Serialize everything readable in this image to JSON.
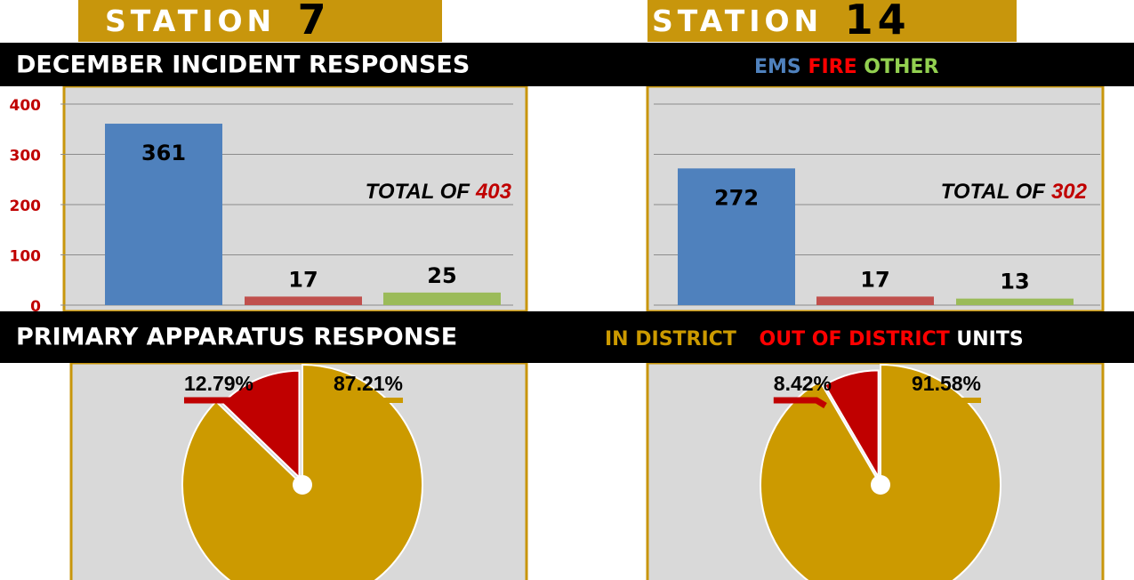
{
  "stations": [
    {
      "label": "STATION",
      "number": 7
    },
    {
      "label": "STATION",
      "number": 14
    }
  ],
  "banner1": {
    "title": "DECEMBER INCIDENT RESPONSES",
    "legend": [
      {
        "name": "EMS",
        "color": "#4f81bd"
      },
      {
        "name": "FIRE",
        "color": "#ff0000"
      },
      {
        "name": "OTHER",
        "color": "#92d050"
      }
    ]
  },
  "banner2": {
    "title": "PRIMARY APPARATUS RESPONSE",
    "legend": [
      {
        "name": "IN DISTRICT",
        "color": "#cc9a00"
      },
      {
        "name": "OUT OF DISTRICT",
        "color": "#ff0000"
      },
      {
        "name": "UNITS",
        "color": "#ffffff"
      }
    ]
  },
  "chart_data": [
    {
      "type": "bar",
      "values": [
        361,
        17,
        25
      ],
      "colors": [
        "#4f81bd",
        "#c0504d",
        "#9bbb59"
      ],
      "ylim": [
        0,
        400
      ],
      "yticks": [
        0,
        100,
        200,
        300,
        400
      ],
      "grid": true,
      "tick_labels": true,
      "annotation": "TOTAL OF",
      "total": 403,
      "total_color": "#c00000"
    },
    {
      "type": "bar",
      "values": [
        272,
        17,
        13
      ],
      "colors": [
        "#4f81bd",
        "#c0504d",
        "#9bbb59"
      ],
      "ylim": [
        0,
        400
      ],
      "yticks": [
        0,
        100,
        200,
        300,
        400
      ],
      "grid": true,
      "tick_labels": false,
      "annotation": "TOTAL OF",
      "total": 302,
      "total_color": "#c00000"
    },
    {
      "type": "pie",
      "values": [
        87.21,
        12.79
      ],
      "value_labels": [
        "87.21%",
        "12.79%"
      ],
      "colors": [
        "#cc9a00",
        "#c00000"
      ]
    },
    {
      "type": "pie",
      "values": [
        91.58,
        8.42
      ],
      "value_labels": [
        "91.58%",
        "8.42%"
      ],
      "colors": [
        "#cc9a00",
        "#c00000"
      ]
    }
  ]
}
